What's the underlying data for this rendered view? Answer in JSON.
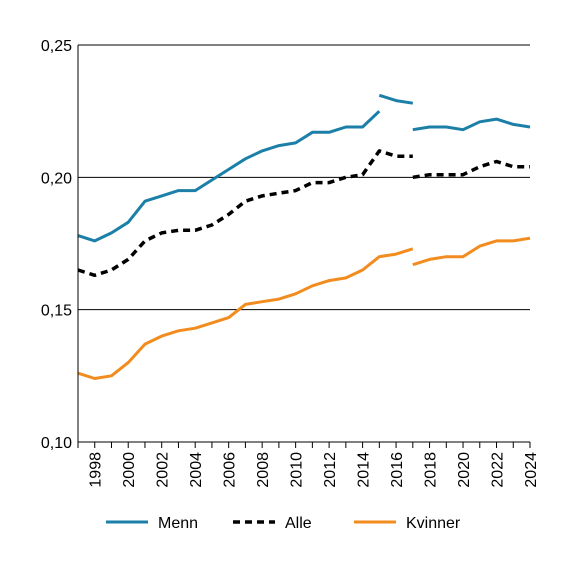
{
  "chart_data": {
    "type": "line",
    "title": "",
    "xlabel": "",
    "ylabel": "",
    "ylim": [
      0.1,
      0.25
    ],
    "xlim": [
      1997,
      2024
    ],
    "y_ticks": [
      {
        "value": 0.1,
        "label": "0,10"
      },
      {
        "value": 0.15,
        "label": "0,15"
      },
      {
        "value": 0.2,
        "label": "0,20"
      },
      {
        "value": 0.25,
        "label": "0,25"
      }
    ],
    "x_tick_labels": [
      "1998",
      "2000",
      "2002",
      "2004",
      "2006",
      "2008",
      "2010",
      "2012",
      "2014",
      "2016",
      "2018",
      "2020",
      "2022",
      "2024"
    ],
    "grid": "horizontal",
    "legend_placement": "bottom",
    "series": [
      {
        "name": "Menn",
        "color": "#1b7fa8",
        "dash": "solid",
        "segments": [
          {
            "x": [
              1997,
              1998,
              1999,
              2000,
              2001,
              2002,
              2003,
              2004,
              2005,
              2006,
              2007,
              2008,
              2009,
              2010,
              2011,
              2012,
              2013,
              2014,
              2015
            ],
            "y": [
              0.178,
              0.176,
              0.179,
              0.183,
              0.191,
              0.193,
              0.195,
              0.195,
              0.199,
              0.203,
              0.207,
              0.21,
              0.212,
              0.213,
              0.217,
              0.217,
              0.219,
              0.219,
              0.225
            ]
          },
          {
            "x": [
              2015,
              2016,
              2017
            ],
            "y": [
              0.231,
              0.229,
              0.228
            ]
          },
          {
            "x": [
              2017,
              2018,
              2019,
              2020,
              2021,
              2022,
              2023,
              2024
            ],
            "y": [
              0.218,
              0.219,
              0.219,
              0.218,
              0.221,
              0.222,
              0.22,
              0.219
            ]
          }
        ]
      },
      {
        "name": "Alle",
        "color": "#000000",
        "dash": "dashed",
        "segments": [
          {
            "x": [
              1997,
              1998,
              1999,
              2000,
              2001,
              2002,
              2003,
              2004,
              2005,
              2006,
              2007,
              2008,
              2009,
              2010,
              2011,
              2012,
              2013,
              2014,
              2015,
              2016,
              2017
            ],
            "y": [
              0.165,
              0.163,
              0.165,
              0.169,
              0.176,
              0.179,
              0.18,
              0.18,
              0.182,
              0.186,
              0.191,
              0.193,
              0.194,
              0.195,
              0.198,
              0.198,
              0.2,
              0.201,
              0.21,
              0.208,
              0.208
            ]
          },
          {
            "x": [
              2017,
              2018,
              2019,
              2020,
              2021,
              2022,
              2023,
              2024
            ],
            "y": [
              0.2,
              0.201,
              0.201,
              0.201,
              0.204,
              0.206,
              0.204,
              0.204
            ]
          }
        ]
      },
      {
        "name": "Kvinner",
        "color": "#f28c1e",
        "dash": "solid",
        "segments": [
          {
            "x": [
              1997,
              1998,
              1999,
              2000,
              2001,
              2002,
              2003,
              2004,
              2005,
              2006,
              2007,
              2008,
              2009,
              2010,
              2011,
              2012,
              2013,
              2014,
              2015,
              2016,
              2017
            ],
            "y": [
              0.126,
              0.124,
              0.125,
              0.13,
              0.137,
              0.14,
              0.142,
              0.143,
              0.145,
              0.147,
              0.152,
              0.153,
              0.154,
              0.156,
              0.159,
              0.161,
              0.162,
              0.165,
              0.17,
              0.171,
              0.173
            ]
          },
          {
            "x": [
              2017,
              2018,
              2019,
              2020,
              2021,
              2022,
              2023,
              2024
            ],
            "y": [
              0.167,
              0.169,
              0.17,
              0.17,
              0.174,
              0.176,
              0.176,
              0.177
            ]
          }
        ]
      }
    ]
  }
}
